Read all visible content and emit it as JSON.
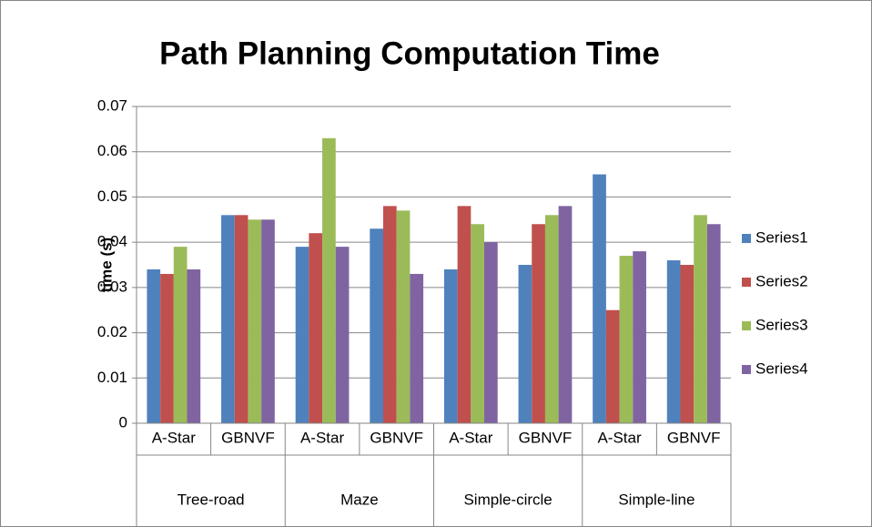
{
  "chart_data": {
    "type": "bar",
    "title": "Path Planning Computation Time",
    "y_label": "time (s)",
    "categories": [
      "A-Star",
      "GBNVF",
      "A-Star",
      "GBNVF",
      "A-Star",
      "GBNVF",
      "A-Star",
      "GBNVF"
    ],
    "groups": [
      "Tree-road",
      "Maze",
      "Simple-circle",
      "Simple-line"
    ],
    "series": [
      {
        "name": "Series1",
        "color": "#4f81bd",
        "values": [
          0.034,
          0.046,
          0.039,
          0.043,
          0.034,
          0.035,
          0.055,
          0.036
        ]
      },
      {
        "name": "Series2",
        "color": "#c0504d",
        "values": [
          0.033,
          0.046,
          0.042,
          0.048,
          0.048,
          0.044,
          0.025,
          0.035
        ]
      },
      {
        "name": "Series3",
        "color": "#9bbb59",
        "values": [
          0.039,
          0.045,
          0.063,
          0.047,
          0.044,
          0.046,
          0.037,
          0.046
        ]
      },
      {
        "name": "Series4",
        "color": "#8064a2",
        "values": [
          0.034,
          0.045,
          0.039,
          0.033,
          0.04,
          0.048,
          0.038,
          0.044
        ]
      }
    ],
    "ylim": [
      0,
      0.07
    ],
    "yticks": [
      0,
      0.01,
      0.02,
      0.03,
      0.04,
      0.05,
      0.06,
      0.07
    ],
    "grid": true,
    "legend": "right"
  }
}
